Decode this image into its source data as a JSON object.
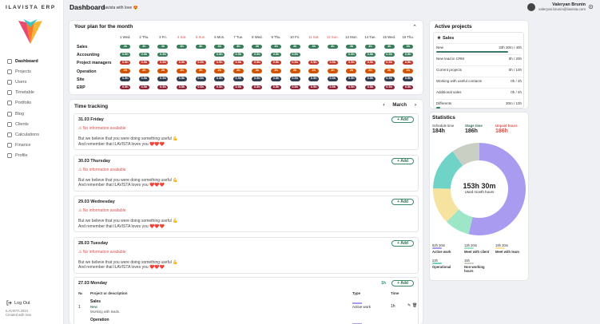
{
  "app": {
    "brand": "ILAVISTA ERP",
    "title": "Dashboard",
    "subtitle": "ilavista with love 😍"
  },
  "user": {
    "name": "Valeryan Brunin",
    "email": "valeryan.brunin@ilavista.com"
  },
  "nav": [
    {
      "label": "Dashboard",
      "icon": "home-icon",
      "active": true
    },
    {
      "label": "Projects",
      "icon": "folder-icon"
    },
    {
      "label": "Users",
      "icon": "user-icon"
    },
    {
      "label": "Timetable",
      "icon": "calendar-icon"
    },
    {
      "label": "Portfolio",
      "icon": "briefcase-icon"
    },
    {
      "label": "Blog",
      "icon": "blog-icon"
    },
    {
      "label": "Clients",
      "icon": "clients-icon"
    },
    {
      "label": "Calculations",
      "icon": "calculator-icon"
    },
    {
      "label": "Finance",
      "icon": "finance-icon"
    },
    {
      "label": "Profile",
      "icon": "profile-icon"
    }
  ],
  "logout": "Log Out",
  "footer": [
    "ILAVISTA 2024",
    "Created with love"
  ],
  "plan": {
    "title": "Your plan for the month",
    "days": [
      {
        "label": "1 Wed.",
        "weekend": false
      },
      {
        "label": "2 Thu.",
        "weekend": false
      },
      {
        "label": "3 Fri.",
        "weekend": false
      },
      {
        "label": "4 Sat.",
        "weekend": true
      },
      {
        "label": "5 Sun.",
        "weekend": true
      },
      {
        "label": "6 Mon.",
        "weekend": false
      },
      {
        "label": "7 Tue.",
        "weekend": false
      },
      {
        "label": "8 Wed.",
        "weekend": false
      },
      {
        "label": "9 Thu.",
        "weekend": false
      },
      {
        "label": "10 Fri.",
        "weekend": false
      },
      {
        "label": "11 Sat.",
        "weekend": true
      },
      {
        "label": "12 Sun.",
        "weekend": true
      },
      {
        "label": "13 Mon.",
        "weekend": false
      },
      {
        "label": "14 Tue.",
        "weekend": false
      },
      {
        "label": "15 Wed.",
        "weekend": false
      },
      {
        "label": "16 Thu.",
        "weekend": false
      }
    ],
    "rows": [
      {
        "label": "Sales",
        "color": "#3a7d5c",
        "values": [
          "4h",
          "4h",
          "4h",
          "4h",
          "4h",
          "4h",
          "4h",
          "4h",
          "4h",
          "4h",
          "4h",
          "4h",
          "4h",
          "4h",
          "4h",
          "4h"
        ]
      },
      {
        "label": "Accounting",
        "color": "#3a7d5c",
        "values": [
          "0.5h",
          "0.5h",
          "0.5h",
          "",
          "",
          "0.5h",
          "0.5h",
          "0.5h",
          "0.5h",
          "0.5h",
          "",
          "",
          "0.5h",
          "0.5h",
          "0.5h",
          "0.5h"
        ]
      },
      {
        "label": "Project managers",
        "color": "#c0392b",
        "values": [
          "0.5h",
          "0.5h",
          "0.5h",
          "0.5h",
          "0.5h",
          "0.5h",
          "0.5h",
          "0.5h",
          "0.5h",
          "0.5h",
          "0.5h",
          "0.5h",
          "0.5h",
          "0.5h",
          "0.5h",
          "0.5h"
        ]
      },
      {
        "label": "Operation",
        "color": "#d35400",
        "values": [
          "2h",
          "2h",
          "2h",
          "2h",
          "2h",
          "2h",
          "2h",
          "2h",
          "2h",
          "2h",
          "2h",
          "2h",
          "2h",
          "2h",
          "2h",
          "2h"
        ]
      },
      {
        "label": "Site",
        "color": "#2c3e50",
        "values": [
          "0.5h",
          "0.5h",
          "0.5h",
          "0.5h",
          "0.5h",
          "0.5h",
          "0.5h",
          "0.5h",
          "0.5h",
          "0.5h",
          "0.5h",
          "0.5h",
          "0.5h",
          "0.5h",
          "0.5h",
          "0.5h"
        ]
      },
      {
        "label": "ERP",
        "color": "#8e2437",
        "values": [
          "0.5h",
          "0.5h",
          "0.5h",
          "0.5h",
          "0.5h",
          "0.5h",
          "0.5h",
          "0.5h",
          "0.5h",
          "0.5h",
          "0.5h",
          "0.5h",
          "0.5h",
          "0.5h",
          "0.5h",
          "0.5h"
        ]
      }
    ]
  },
  "time_tracking": {
    "title": "Time tracking",
    "month": "March",
    "add_label": "+ Add",
    "no_info": "No information available",
    "excuse_1": "But we believe that you were doing something useful 💪",
    "excuse_2": "And remember that ILAVISTA loves you ❤️❤️❤️",
    "days": [
      "31.03 Friday",
      "30.03 Thursday",
      "29.03 Wednesday",
      "28.03 Tuesday"
    ],
    "last_day": {
      "date": "27.03 Monday",
      "total": "1h"
    },
    "table_headers": {
      "num": "№",
      "project": "Project or description",
      "type": "Type",
      "time": "Time"
    },
    "entries": [
      {
        "num": "1",
        "project": "Sales",
        "status": "New",
        "desc": "Working with leads.",
        "type": "Active work",
        "time": "1h"
      },
      {
        "num": "",
        "project": "Operation",
        "status": "",
        "desc": "",
        "type": "",
        "time": ""
      }
    ]
  },
  "active_projects": {
    "title": "Active projects",
    "project": "Sales",
    "rows": [
      {
        "label": "New",
        "value": "33h 30m / 40h",
        "progress": 0.84
      },
      {
        "label": "New lead in CRM",
        "value": "0h / 20h",
        "progress": 0
      },
      {
        "label": "Current projects",
        "value": "0h / 10h",
        "progress": 0
      },
      {
        "label": "Working with useful contacts",
        "value": "0h / 2h",
        "progress": 0
      },
      {
        "label": "Additional sales",
        "value": "0h / 4h",
        "progress": 0
      },
      {
        "label": "Differents",
        "value": "30m / 10h",
        "progress": 0.05
      }
    ]
  },
  "statistics": {
    "title": "Statistics",
    "schedule_label": "Schedule time",
    "schedule_value": "184h",
    "stage_label": "Stage time",
    "stage_value": "186h",
    "unpaid_label": "Unpaid hours",
    "unpaid_value": "186h",
    "center_value": "153h 30m",
    "center_label": "Used month hours",
    "segments": [
      {
        "name": "Active work",
        "value": "82h 30m",
        "hours": 82.5,
        "color": "#a99cf0"
      },
      {
        "name": "Meet with client",
        "value": "13h 30m",
        "hours": 13.5,
        "color": "#9ee6c8"
      },
      {
        "name": "Meet with team",
        "value": "19h 30m",
        "hours": 19.5,
        "color": "#f6e3a0"
      },
      {
        "name": "Operational",
        "value": "23h",
        "hours": 23,
        "color": "#6fd3c8"
      },
      {
        "name": "Non-working hours",
        "value": "15h",
        "hours": 15,
        "color": "#c9cfc2"
      }
    ]
  }
}
